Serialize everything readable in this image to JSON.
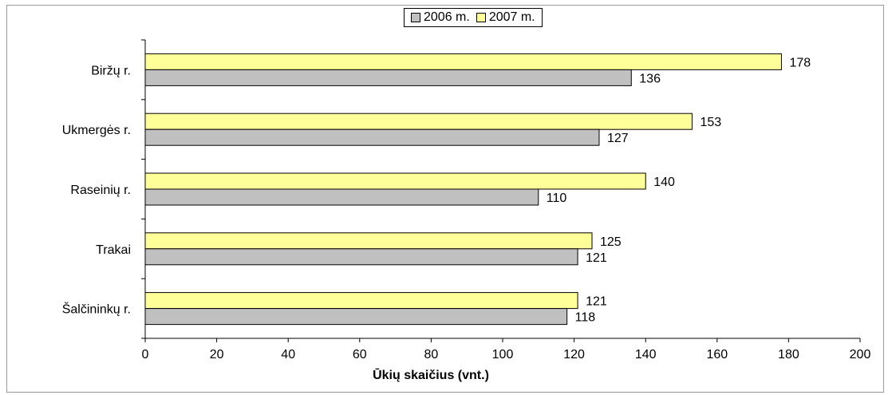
{
  "chart_data": {
    "type": "bar",
    "orientation": "horizontal",
    "categories": [
      "Biržų r.",
      "Ukmergės r.",
      "Raseinių r.",
      "Trakai",
      "Šalčininkų r."
    ],
    "series": [
      {
        "name": "2006 m.",
        "values": [
          136,
          127,
          110,
          121,
          118
        ],
        "color": "#c0c0c0"
      },
      {
        "name": "2007 m.",
        "values": [
          178,
          153,
          140,
          125,
          121
        ],
        "color": "#ffff99"
      }
    ],
    "title": "",
    "xlabel": "Ūkių skaičius (vnt.)",
    "ylabel": "",
    "xlim": [
      0,
      200
    ],
    "xticks": [
      0,
      20,
      40,
      60,
      80,
      100,
      120,
      140,
      160,
      180,
      200
    ],
    "grid": false,
    "legend_position": "top-center"
  }
}
